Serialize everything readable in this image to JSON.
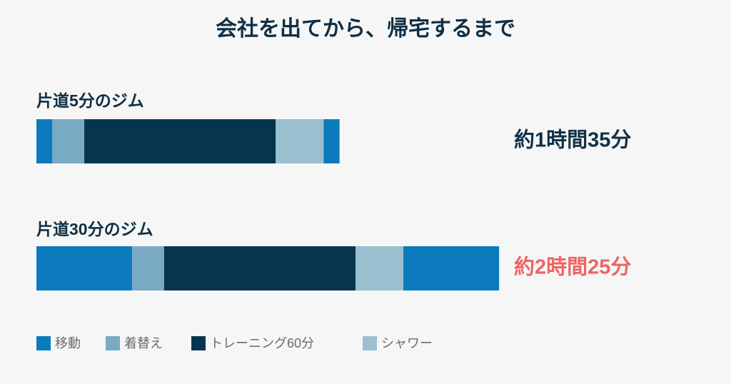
{
  "chart_data": {
    "type": "bar",
    "orientation": "horizontal",
    "stacked": true,
    "title": "会社を出てから、帰宅するまで",
    "categories": [
      "片道5分のジム",
      "片道30分のジム"
    ],
    "series": [
      {
        "name": "移動",
        "color": "#0b7bbd",
        "values": [
          [
            5,
            5
          ],
          [
            30,
            30
          ]
        ]
      },
      {
        "name": "着替え",
        "color": "#79aac4",
        "values": [
          10,
          10
        ]
      },
      {
        "name": "トレーニング60分",
        "color": "#06364f",
        "values": [
          60,
          60
        ]
      },
      {
        "name": "シャワー",
        "color": "#9bc0cf",
        "values": [
          15,
          15
        ]
      }
    ],
    "annotations": [
      {
        "text": "約1時間35分",
        "color": "#0f3247"
      },
      {
        "text": "約2時間25分",
        "color": "#ef6464"
      }
    ]
  }
}
